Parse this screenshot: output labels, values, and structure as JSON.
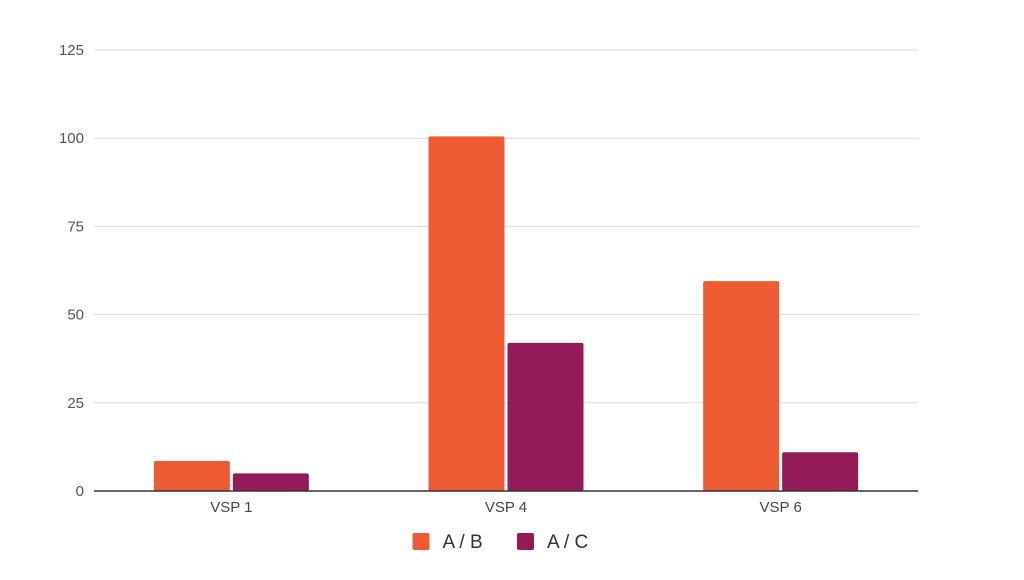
{
  "chart_data": {
    "type": "bar",
    "categories": [
      "VSP 1",
      "VSP 4",
      "VSP 6"
    ],
    "series": [
      {
        "name": "A / B",
        "values": [
          8.5,
          100.5,
          59.5
        ],
        "color": "#EC5B34"
      },
      {
        "name": "A / C",
        "values": [
          5.0,
          42.0,
          11.0
        ],
        "color": "#921B58"
      }
    ],
    "yticks": [
      0,
      25,
      50,
      75,
      100,
      125
    ],
    "ylim": [
      0,
      125
    ],
    "grid": true,
    "legend": "bottom-center",
    "title": "",
    "xlabel": "",
    "ylabel": ""
  }
}
